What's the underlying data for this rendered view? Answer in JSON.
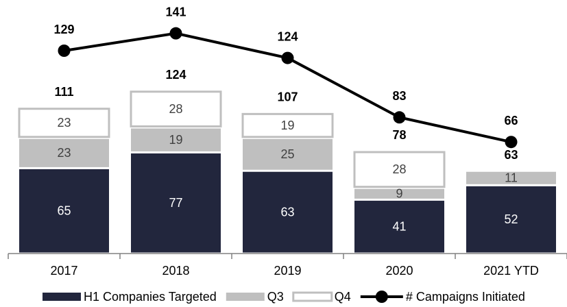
{
  "chart_data": {
    "type": "bar",
    "stacked": true,
    "categories": [
      "2017",
      "2018",
      "2019",
      "2020",
      "2021 YTD"
    ],
    "series": [
      {
        "name": "H1 Companies Targeted",
        "color": "#22263d",
        "label_color": "#ffffff",
        "values": [
          65,
          77,
          63,
          41,
          52
        ]
      },
      {
        "name": "Q3",
        "color": "#bfbfbf",
        "label_color": "#404040",
        "values": [
          23,
          19,
          25,
          9,
          11
        ]
      },
      {
        "name": "Q4",
        "color": "#ffffff",
        "border": "#bfbfbf",
        "label_color": "#404040",
        "values": [
          23,
          28,
          19,
          28,
          null
        ]
      },
      {
        "name": "# Campaigns Initiated",
        "type": "line",
        "axis": "y2",
        "color": "#000000",
        "values": [
          129,
          141,
          124,
          83,
          66
        ]
      }
    ],
    "totals": [
      111,
      124,
      107,
      78,
      63
    ],
    "ylim": [
      0,
      193
    ],
    "y2lim": [
      -11,
      164
    ],
    "legend": "bottom"
  }
}
